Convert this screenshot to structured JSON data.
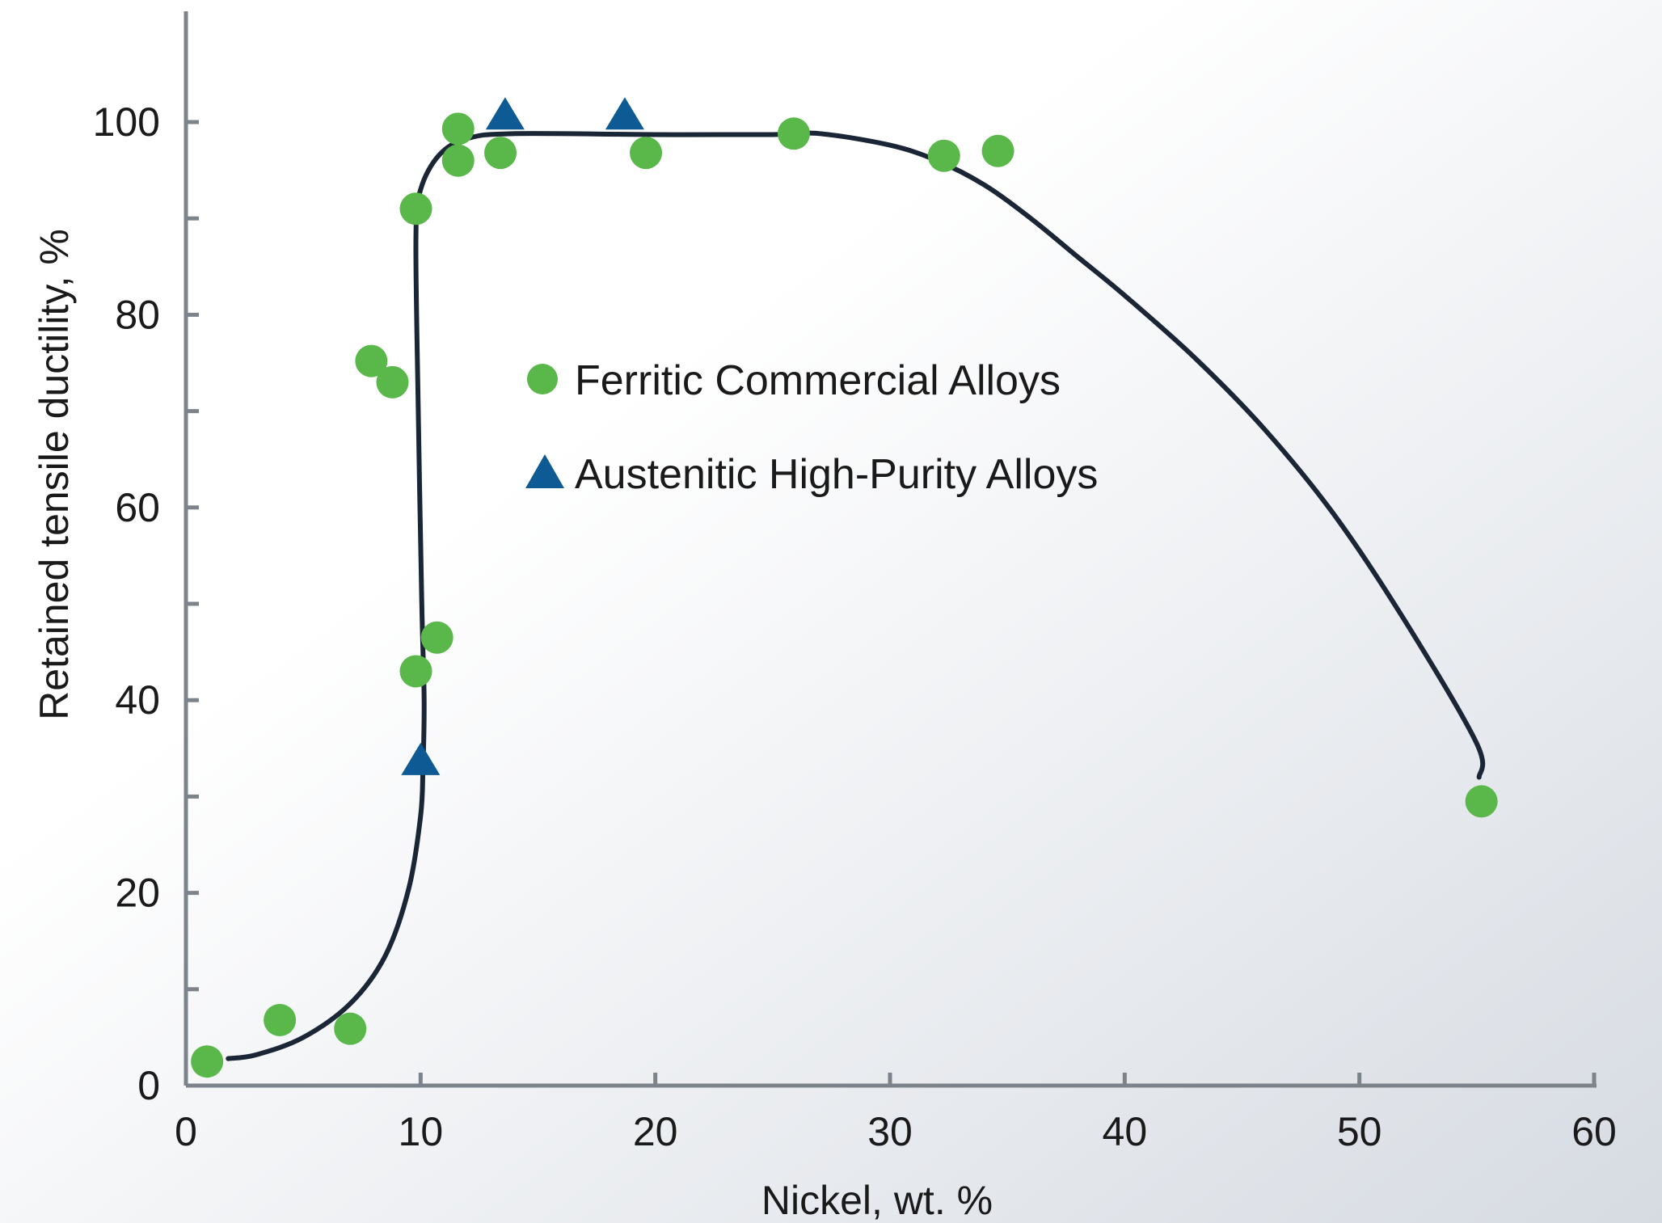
{
  "chart_data": {
    "type": "scatter",
    "xlabel": "Nickel, wt. %",
    "ylabel": "Retained tensile ductility, %",
    "xlim": [
      0,
      60
    ],
    "ylim": [
      0,
      100
    ],
    "x_ticks": [
      "0",
      "10",
      "20",
      "30",
      "40",
      "50",
      "60"
    ],
    "y_ticks": [
      "0",
      "20",
      "40",
      "60",
      "80",
      "100"
    ],
    "grid": false,
    "legend_position": "center",
    "colors": {
      "ferritic": "#5ab84a",
      "austenitic": "#0d5a94",
      "curve": "#1a2535",
      "axis": "#7d838a",
      "background_start": "#ffffff",
      "background_end": "#d6dbe2"
    },
    "series": [
      {
        "name": "Ferritic Commercial Alloys",
        "marker": "circle",
        "points": [
          [
            0.9,
            2.5
          ],
          [
            4.0,
            6.8
          ],
          [
            7.0,
            5.9
          ],
          [
            7.9,
            75.2
          ],
          [
            8.8,
            73.0
          ],
          [
            9.8,
            91.0
          ],
          [
            9.8,
            43.0
          ],
          [
            10.7,
            46.5
          ],
          [
            11.6,
            99.3
          ],
          [
            11.6,
            96.0
          ],
          [
            13.4,
            96.8
          ],
          [
            19.6,
            96.8
          ],
          [
            25.9,
            98.8
          ],
          [
            32.3,
            96.5
          ],
          [
            34.6,
            97.0
          ],
          [
            55.2,
            29.5
          ]
        ]
      },
      {
        "name": "Austenitic High-Purity Alloys",
        "marker": "triangle",
        "points": [
          [
            10.0,
            33.5
          ],
          [
            13.6,
            100.5
          ],
          [
            18.7,
            100.5
          ]
        ]
      }
    ],
    "trend_curve": [
      [
        1.8,
        2.8
      ],
      [
        3.0,
        3.2
      ],
      [
        5.0,
        5.0
      ],
      [
        7.0,
        8.5
      ],
      [
        8.5,
        13.5
      ],
      [
        9.5,
        20.5
      ],
      [
        10.0,
        28.0
      ],
      [
        10.1,
        33.0
      ],
      [
        10.15,
        40.0
      ],
      [
        10.05,
        50.0
      ],
      [
        9.9,
        70.0
      ],
      [
        9.8,
        88.0
      ],
      [
        10.0,
        93.0
      ],
      [
        10.8,
        96.6
      ],
      [
        12.0,
        98.3
      ],
      [
        14.0,
        98.8
      ],
      [
        20.0,
        98.7
      ],
      [
        25.0,
        98.7
      ],
      [
        27.0,
        98.8
      ],
      [
        30.0,
        97.6
      ],
      [
        32.0,
        96.0
      ],
      [
        34.0,
        93.5
      ],
      [
        36.0,
        90.0
      ],
      [
        38.0,
        86.0
      ],
      [
        40.0,
        82.0
      ],
      [
        43.0,
        75.5
      ],
      [
        46.0,
        68.0
      ],
      [
        49.0,
        59.0
      ],
      [
        52.0,
        48.0
      ],
      [
        55.0,
        35.5
      ],
      [
        55.1,
        32.0
      ]
    ]
  }
}
